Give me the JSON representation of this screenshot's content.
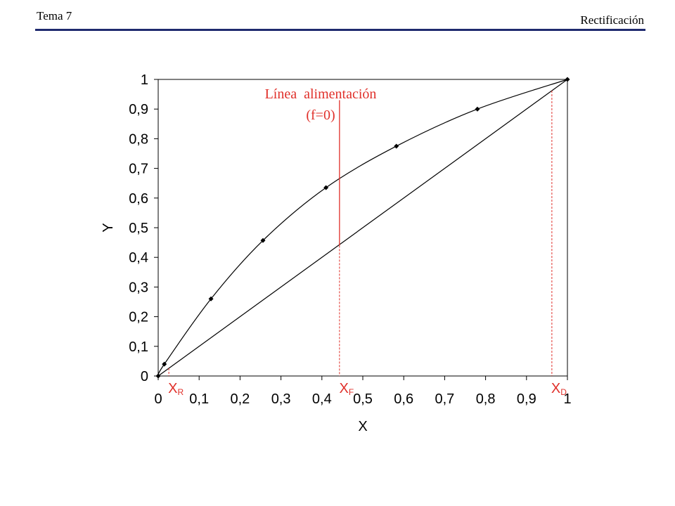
{
  "header": {
    "left": "Tema 7",
    "right": "Rectificación"
  },
  "chart_data": {
    "type": "scatter",
    "xlabel": "X",
    "ylabel": "Y",
    "xlim": [
      0,
      1
    ],
    "ylim": [
      0,
      1
    ],
    "xticks": [
      0,
      {
        "value": 0.1,
        "label": "0,1"
      },
      {
        "value": 0.2,
        "label": "0,2"
      },
      {
        "value": 0.3,
        "label": "0,3"
      },
      {
        "value": 0.4,
        "label": "0,4"
      },
      {
        "value": 0.5,
        "label": "0,5"
      },
      {
        "value": 0.6,
        "label": "0,6"
      },
      {
        "value": 0.7,
        "label": "0,7"
      },
      {
        "value": 0.8,
        "label": "0,8"
      },
      {
        "value": 0.9,
        "label": "0,9"
      },
      1
    ],
    "yticks": [
      0,
      {
        "value": 0.1,
        "label": "0,1"
      },
      {
        "value": 0.2,
        "label": "0,2"
      },
      {
        "value": 0.3,
        "label": "0,3"
      },
      {
        "value": 0.4,
        "label": "0,4"
      },
      {
        "value": 0.5,
        "label": "0,5"
      },
      {
        "value": 0.6,
        "label": "0,6"
      },
      {
        "value": 0.7,
        "label": "0,7"
      },
      {
        "value": 0.8,
        "label": "0,8"
      },
      {
        "value": 0.9,
        "label": "0,9"
      },
      1
    ],
    "series": [
      {
        "color": "#000000",
        "markers": true,
        "smooth": true,
        "x": [
          0,
          0.015,
          0.129,
          0.256,
          0.41,
          0.582,
          0.78,
          1
        ],
        "values": [
          0,
          0.04,
          0.26,
          0.457,
          0.635,
          0.775,
          0.9,
          1
        ]
      },
      {
        "color": "#000000",
        "markers": false,
        "smooth": false,
        "x": [
          0,
          1
        ],
        "values": [
          0,
          1
        ]
      }
    ],
    "feed_line": {
      "text": [
        "Línea  alimentación",
        "(f=0)"
      ],
      "x": 0.443,
      "y": [
        0.44,
        0.93
      ],
      "color": "#e0302a"
    },
    "compositions": [
      {
        "label": "X",
        "sub": "R",
        "x": 0.026,
        "y": 0.026
      },
      {
        "label": "X",
        "sub": "F",
        "x": 0.443,
        "y": 0.44
      },
      {
        "label": "X",
        "sub": "D",
        "x": 0.962,
        "y": 0.962
      }
    ],
    "annotation_color": "#e0302a"
  }
}
